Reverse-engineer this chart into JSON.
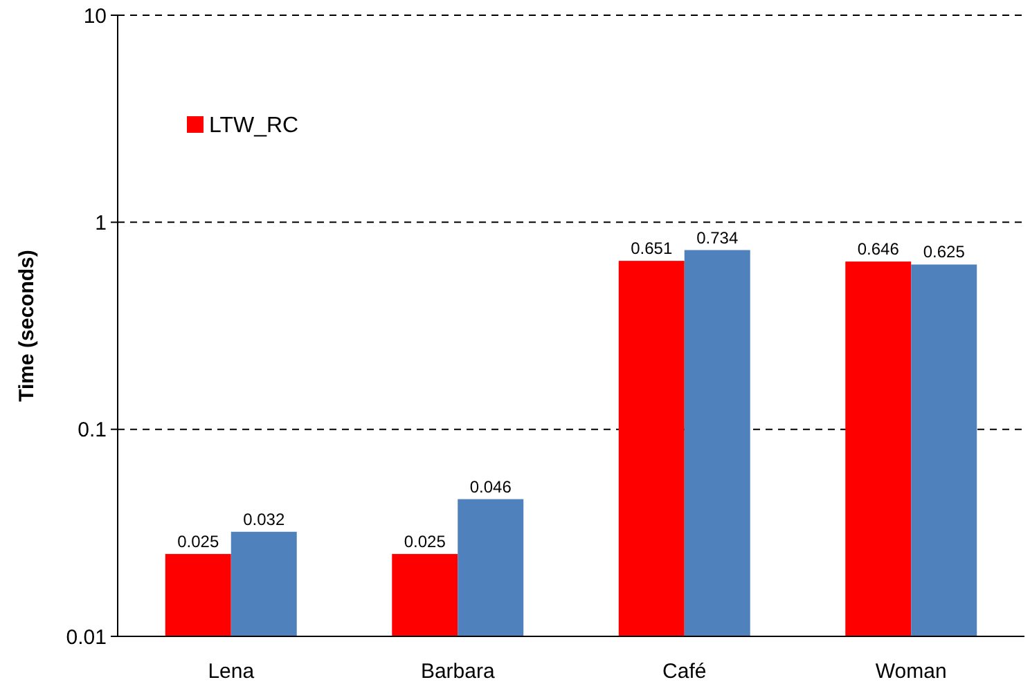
{
  "chart_data": {
    "type": "bar",
    "ylabel": "Time (seconds)",
    "categories": [
      "Lena",
      "Barbara",
      "Café",
      "Woman"
    ],
    "series": [
      {
        "name": "LTW_RC",
        "color": "#ff0000",
        "values": [
          0.025,
          0.025,
          0.651,
          0.646
        ]
      },
      {
        "color": "#4f81bd",
        "values": [
          0.032,
          0.046,
          0.734,
          0.625
        ]
      }
    ],
    "log": true,
    "ylim": [
      0.01,
      10
    ],
    "yticks": [
      0.01,
      0.1,
      1,
      10
    ],
    "grid": "y",
    "line_style": "dashed",
    "legend": "top left",
    "data_labels": true
  }
}
